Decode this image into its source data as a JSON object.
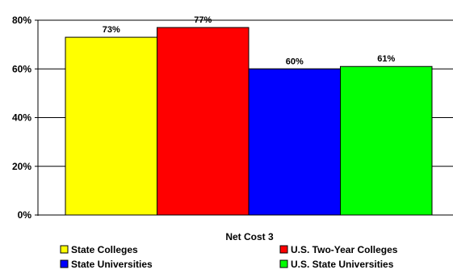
{
  "chart_data": {
    "type": "bar",
    "categories": [
      "Net Cost 3"
    ],
    "series": [
      {
        "name": "State Colleges",
        "values": [
          73
        ],
        "label": "73%",
        "color": "#ffff00"
      },
      {
        "name": "U.S. Two-Year Colleges",
        "values": [
          77
        ],
        "label": "77%",
        "color": "#ff0000"
      },
      {
        "name": "State Universities",
        "values": [
          60
        ],
        "label": "60%",
        "color": "#0000ff"
      },
      {
        "name": "U.S. State Universities",
        "values": [
          61
        ],
        "label": "61%",
        "color": "#00ff00"
      }
    ],
    "y_ticks": [
      "0%",
      "20%",
      "40%",
      "60%",
      "80%"
    ],
    "ylim": [
      0,
      80
    ],
    "grid": true,
    "legend_position": "bottom"
  }
}
